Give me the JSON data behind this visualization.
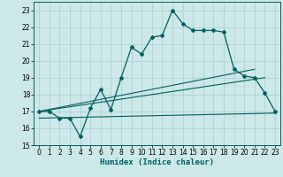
{
  "title": "",
  "xlabel": "Humidex (Indice chaleur)",
  "xlim": [
    -0.5,
    23.5
  ],
  "ylim": [
    15,
    23.5
  ],
  "yticks": [
    15,
    16,
    17,
    18,
    19,
    20,
    21,
    22,
    23
  ],
  "xticks": [
    0,
    1,
    2,
    3,
    4,
    5,
    6,
    7,
    8,
    9,
    10,
    11,
    12,
    13,
    14,
    15,
    16,
    17,
    18,
    19,
    20,
    21,
    22,
    23
  ],
  "bg_color": "#cce8e8",
  "grid_color": "#aacece",
  "line_color": "#005f5f",
  "curve1_x": [
    0,
    1,
    2,
    3,
    4,
    5,
    6,
    7,
    8,
    9,
    10,
    11,
    12,
    13,
    14,
    15,
    16,
    17,
    18,
    19,
    20,
    21,
    22,
    23
  ],
  "curve1_y": [
    17.0,
    17.0,
    16.6,
    16.6,
    15.5,
    17.2,
    18.3,
    17.1,
    19.0,
    20.8,
    20.4,
    21.4,
    21.5,
    23.0,
    22.2,
    21.8,
    21.8,
    21.8,
    21.7,
    19.5,
    19.1,
    19.0,
    18.1,
    17.0
  ],
  "curve2_x": [
    0,
    21
  ],
  "curve2_y": [
    17.0,
    19.5
  ],
  "curve3_x": [
    0,
    22
  ],
  "curve3_y": [
    17.0,
    19.0
  ],
  "curve4_x": [
    0,
    23
  ],
  "curve4_y": [
    16.6,
    16.9
  ],
  "tick_fontsize": 5.5,
  "label_fontsize": 6.5
}
